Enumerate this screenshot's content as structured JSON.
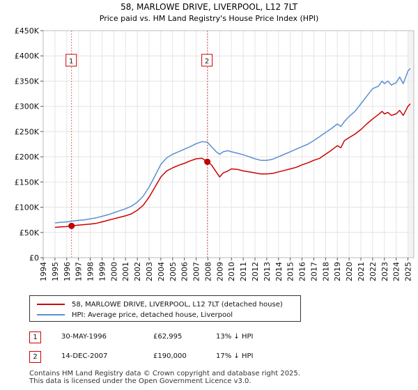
{
  "chart_data": {
    "type": "line",
    "title": "58, MARLOWE DRIVE, LIVERPOOL, L12 7LT",
    "subtitle": "Price paid vs. HM Land Registry's House Price Index (HPI)",
    "xlabel": "",
    "ylabel": "",
    "xlim": [
      1994,
      2025.5
    ],
    "ylim": [
      0,
      450000
    ],
    "yticks": [
      0,
      50000,
      100000,
      150000,
      200000,
      250000,
      300000,
      350000,
      400000,
      450000
    ],
    "ytick_labels": [
      "£0",
      "£50K",
      "£100K",
      "£150K",
      "£200K",
      "£250K",
      "£300K",
      "£350K",
      "£400K",
      "£450K"
    ],
    "xticks": [
      1994,
      1995,
      1996,
      1997,
      1998,
      1999,
      2000,
      2001,
      2002,
      2003,
      2004,
      2005,
      2006,
      2007,
      2008,
      2009,
      2010,
      2011,
      2012,
      2013,
      2014,
      2015,
      2016,
      2017,
      2018,
      2019,
      2020,
      2021,
      2022,
      2023,
      2024,
      2025
    ],
    "xtick_labels": [
      "1994",
      "1995",
      "1996",
      "1997",
      "1998",
      "1999",
      "2000",
      "2001",
      "2002",
      "2003",
      "2004",
      "2005",
      "2006",
      "2007",
      "2008",
      "2009",
      "2010",
      "2011",
      "2012",
      "2013",
      "2014",
      "2015",
      "2016",
      "2017",
      "2018",
      "2019",
      "2020",
      "2021",
      "2022",
      "2023",
      "2024",
      "2025"
    ],
    "grid": true,
    "series": [
      {
        "name": "58, MARLOWE DRIVE, LIVERPOOL, L12 7LT (detached house)",
        "color": "#cc0000",
        "x": [
          1995.0,
          1995.5,
          1996.0,
          1996.41,
          1997.0,
          1997.5,
          1998.0,
          1998.5,
          1999.0,
          1999.5,
          2000.0,
          2000.5,
          2001.0,
          2001.5,
          2002.0,
          2002.5,
          2003.0,
          2003.5,
          2004.0,
          2004.5,
          2005.0,
          2005.5,
          2006.0,
          2006.5,
          2007.0,
          2007.5,
          2007.95,
          2008.3,
          2008.7,
          2009.0,
          2009.3,
          2009.7,
          2010.0,
          2010.5,
          2011.0,
          2011.5,
          2012.0,
          2012.5,
          2013.0,
          2013.5,
          2014.0,
          2014.5,
          2015.0,
          2015.5,
          2016.0,
          2016.5,
          2017.0,
          2017.5,
          2018.0,
          2018.5,
          2019.0,
          2019.3,
          2019.6,
          2020.0,
          2020.5,
          2021.0,
          2021.5,
          2022.0,
          2022.5,
          2022.8,
          2023.0,
          2023.3,
          2023.6,
          2024.0,
          2024.3,
          2024.6,
          2025.0,
          2025.2
        ],
        "values": [
          60000,
          61000,
          61500,
          62995,
          64500,
          65500,
          66500,
          68000,
          71000,
          74000,
          77000,
          80000,
          83000,
          87000,
          94000,
          104000,
          120000,
          140000,
          160000,
          172000,
          178000,
          183000,
          187000,
          192000,
          196000,
          197000,
          190000,
          184000,
          170000,
          160000,
          168000,
          172000,
          176000,
          175000,
          172000,
          170000,
          168000,
          166000,
          166000,
          167000,
          170000,
          173000,
          176000,
          179000,
          184000,
          188000,
          193000,
          197000,
          205000,
          213000,
          222000,
          218000,
          232000,
          238000,
          245000,
          254000,
          265000,
          275000,
          284000,
          290000,
          285000,
          288000,
          282000,
          285000,
          292000,
          282000,
          300000,
          305000
        ]
      },
      {
        "name": "HPI: Average price, detached house, Liverpool",
        "color": "#5b8fcf",
        "x": [
          1995.0,
          1995.5,
          1996.0,
          1996.41,
          1997.0,
          1997.5,
          1998.0,
          1998.5,
          1999.0,
          1999.5,
          2000.0,
          2000.5,
          2001.0,
          2001.5,
          2002.0,
          2002.5,
          2003.0,
          2003.5,
          2004.0,
          2004.5,
          2005.0,
          2005.5,
          2006.0,
          2006.5,
          2007.0,
          2007.5,
          2007.95,
          2008.3,
          2008.7,
          2009.0,
          2009.3,
          2009.7,
          2010.0,
          2010.5,
          2011.0,
          2011.5,
          2012.0,
          2012.5,
          2013.0,
          2013.5,
          2014.0,
          2014.5,
          2015.0,
          2015.5,
          2016.0,
          2016.5,
          2017.0,
          2017.5,
          2018.0,
          2018.5,
          2019.0,
          2019.3,
          2019.6,
          2020.0,
          2020.5,
          2021.0,
          2021.5,
          2022.0,
          2022.5,
          2022.8,
          2023.0,
          2023.3,
          2023.6,
          2024.0,
          2024.3,
          2024.6,
          2025.0,
          2025.2
        ],
        "values": [
          69000,
          70000,
          71000,
          72400,
          74000,
          75000,
          77000,
          79000,
          82000,
          85000,
          89000,
          93000,
          97000,
          102000,
          110000,
          122000,
          140000,
          162000,
          185000,
          198000,
          205000,
          210000,
          215000,
          220000,
          226000,
          230000,
          229000,
          220000,
          210000,
          205000,
          210000,
          212000,
          210000,
          207000,
          204000,
          200000,
          196000,
          193000,
          193000,
          195000,
          200000,
          205000,
          210000,
          215000,
          220000,
          225000,
          232000,
          240000,
          248000,
          256000,
          265000,
          260000,
          270000,
          280000,
          290000,
          305000,
          320000,
          335000,
          340000,
          350000,
          345000,
          350000,
          342000,
          347000,
          358000,
          345000,
          370000,
          375000
        ]
      }
    ],
    "sales": [
      {
        "label": "1",
        "x": 1996.41,
        "value": 62995
      },
      {
        "label": "2",
        "x": 2007.95,
        "value": 190000
      }
    ]
  },
  "legend": {
    "property_label": "58, MARLOWE DRIVE, LIVERPOOL, L12 7LT (detached house)",
    "hpi_label": "HPI: Average price, detached house, Liverpool",
    "property_color": "#cc0000",
    "hpi_color": "#5b8fcf"
  },
  "sales_table": [
    {
      "num": "1",
      "date": "30-MAY-1996",
      "price": "£62,995",
      "hpi": "13% ↓ HPI"
    },
    {
      "num": "2",
      "date": "14-DEC-2007",
      "price": "£190,000",
      "hpi": "17% ↓ HPI"
    }
  ],
  "footer": {
    "line1": "Contains HM Land Registry data © Crown copyright and database right 2025.",
    "line2": "This data is licensed under the Open Government Licence v3.0."
  }
}
